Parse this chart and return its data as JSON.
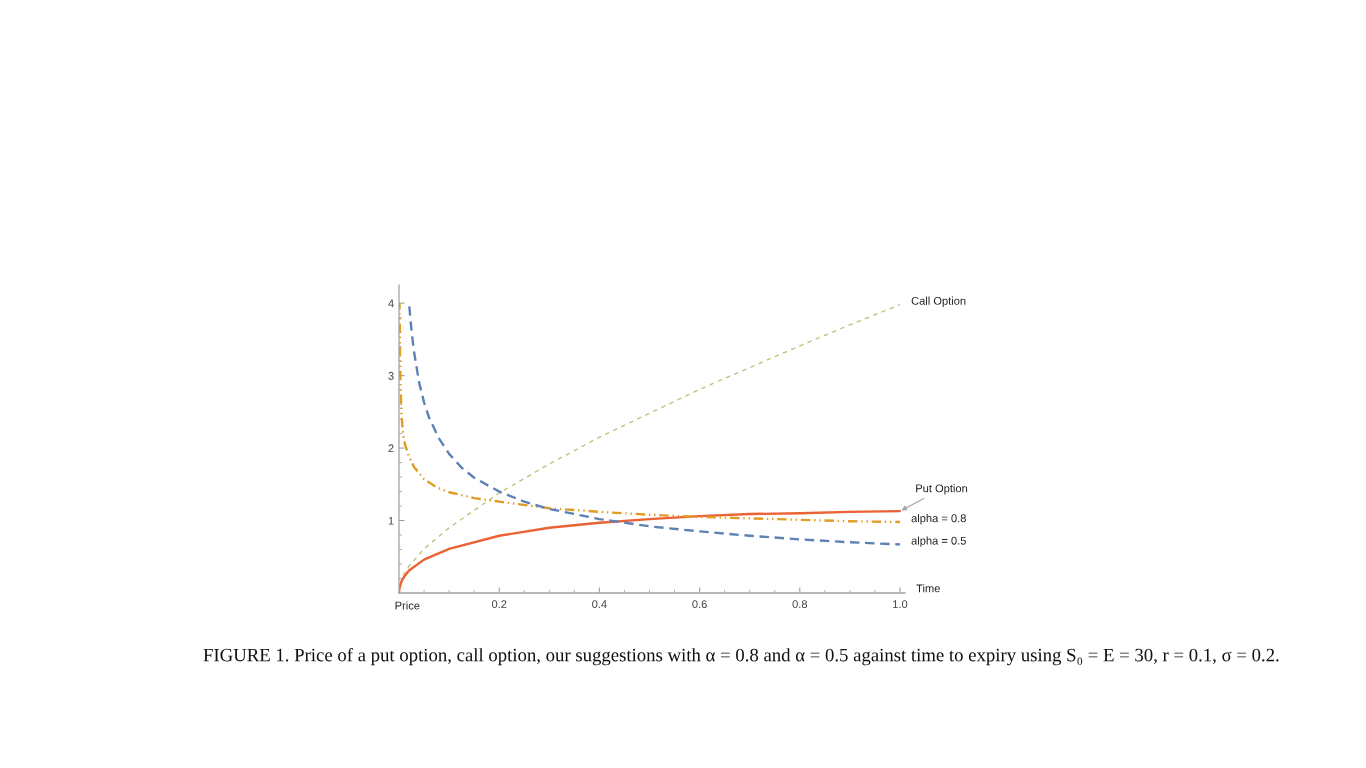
{
  "chart_data": {
    "type": "line",
    "xlabel": "Time",
    "xlim": [
      0,
      1.01
    ],
    "ylim": [
      0,
      4.25
    ],
    "xticks": [
      {
        "value": 0.05,
        "label": null
      },
      {
        "value": 0.1,
        "label": null
      },
      {
        "value": 0.15,
        "label": null
      },
      0.2,
      {
        "value": 0.25,
        "label": null
      },
      {
        "value": 0.3,
        "label": null
      },
      {
        "value": 0.35,
        "label": null
      },
      0.4,
      {
        "value": 0.45,
        "label": null
      },
      {
        "value": 0.5,
        "label": null
      },
      {
        "value": 0.55,
        "label": null
      },
      0.6,
      {
        "value": 0.65,
        "label": null
      },
      {
        "value": 0.7,
        "label": null
      },
      {
        "value": 0.75,
        "label": null
      },
      0.8,
      {
        "value": 0.85,
        "label": null
      },
      {
        "value": 0.9,
        "label": null
      },
      {
        "value": 0.95,
        "label": null
      },
      {
        "value": 1,
        "label": "1.0"
      }
    ],
    "yticks": [
      {
        "value": 0.2,
        "label": null
      },
      {
        "value": 0.4,
        "label": null
      },
      {
        "value": 0.6,
        "label": null
      },
      {
        "value": 0.8,
        "label": null
      },
      1,
      {
        "value": 1.2,
        "label": null
      },
      {
        "value": 1.4,
        "label": null
      },
      {
        "value": 1.6,
        "label": null
      },
      {
        "value": 1.8,
        "label": null
      },
      2,
      {
        "value": 2.2,
        "label": null
      },
      {
        "value": 2.4,
        "label": null
      },
      {
        "value": 2.6,
        "label": null
      },
      {
        "value": 2.8,
        "label": null
      },
      3,
      {
        "value": 3.2,
        "label": null
      },
      {
        "value": 3.4,
        "label": null
      },
      {
        "value": 3.6,
        "label": null
      },
      {
        "value": 3.8,
        "label": null
      },
      4
    ],
    "series": [
      {
        "name": "Call Option",
        "color": "#c4c27c",
        "line_style": "dashed",
        "x": [
          0,
          0.001,
          0.005,
          0.01,
          0.02,
          0.05,
          0.1,
          0.2,
          0.3,
          0.4,
          0.5,
          0.6,
          0.7,
          0.8,
          0.9,
          1.0
        ],
        "values": [
          0,
          0.08,
          0.18,
          0.26,
          0.37,
          0.61,
          0.9,
          1.38,
          1.78,
          2.15,
          2.48,
          2.81,
          3.11,
          3.41,
          3.7,
          3.98
        ]
      },
      {
        "name": "Put Option",
        "color": "#eb6235",
        "line_style": "solid",
        "x": [
          0,
          0.001,
          0.005,
          0.01,
          0.02,
          0.05,
          0.1,
          0.2,
          0.3,
          0.4,
          0.5,
          0.6,
          0.7,
          0.8,
          0.9,
          1.0
        ],
        "values": [
          0,
          0.07,
          0.16,
          0.22,
          0.31,
          0.46,
          0.61,
          0.79,
          0.9,
          0.97,
          1.02,
          1.06,
          1.09,
          1.1,
          1.12,
          1.13
        ]
      },
      {
        "name": "alpha = 0.8",
        "color": "#e19c24",
        "line_style": "dashdot",
        "x": [
          0.001,
          0.002,
          0.003,
          0.005,
          0.008,
          0.012,
          0.02,
          0.03,
          0.05,
          0.075,
          0.1,
          0.15,
          0.2,
          0.3,
          0.4,
          0.5,
          0.6,
          0.7,
          0.8,
          0.9,
          1.0
        ],
        "values": [
          4.0,
          3.3,
          2.9,
          2.45,
          2.2,
          2.05,
          1.88,
          1.74,
          1.57,
          1.46,
          1.39,
          1.31,
          1.26,
          1.17,
          1.12,
          1.08,
          1.05,
          1.03,
          1.01,
          0.99,
          0.98
        ]
      },
      {
        "name": "alpha = 0.5",
        "color": "#5e81b5",
        "line_style": "dashed",
        "x": [
          0.02,
          0.025,
          0.03,
          0.04,
          0.05,
          0.06,
          0.08,
          0.1,
          0.125,
          0.15,
          0.2,
          0.25,
          0.3,
          0.4,
          0.5,
          0.6,
          0.7,
          0.8,
          0.9,
          1.0
        ],
        "values": [
          4.0,
          3.62,
          3.33,
          2.91,
          2.63,
          2.42,
          2.13,
          1.92,
          1.73,
          1.59,
          1.4,
          1.26,
          1.16,
          1.02,
          0.92,
          0.85,
          0.79,
          0.74,
          0.7,
          0.67
        ]
      }
    ],
    "annotations": [
      {
        "text": "Price",
        "x": 0,
        "y": 0
      },
      "FIGURE 1. Price of a put option, call option, our suggestions with α = 0.8 and α = 0.5 against time to expiry using S₀ = E = 30, r = 0.1, σ = 0.2."
    ]
  }
}
